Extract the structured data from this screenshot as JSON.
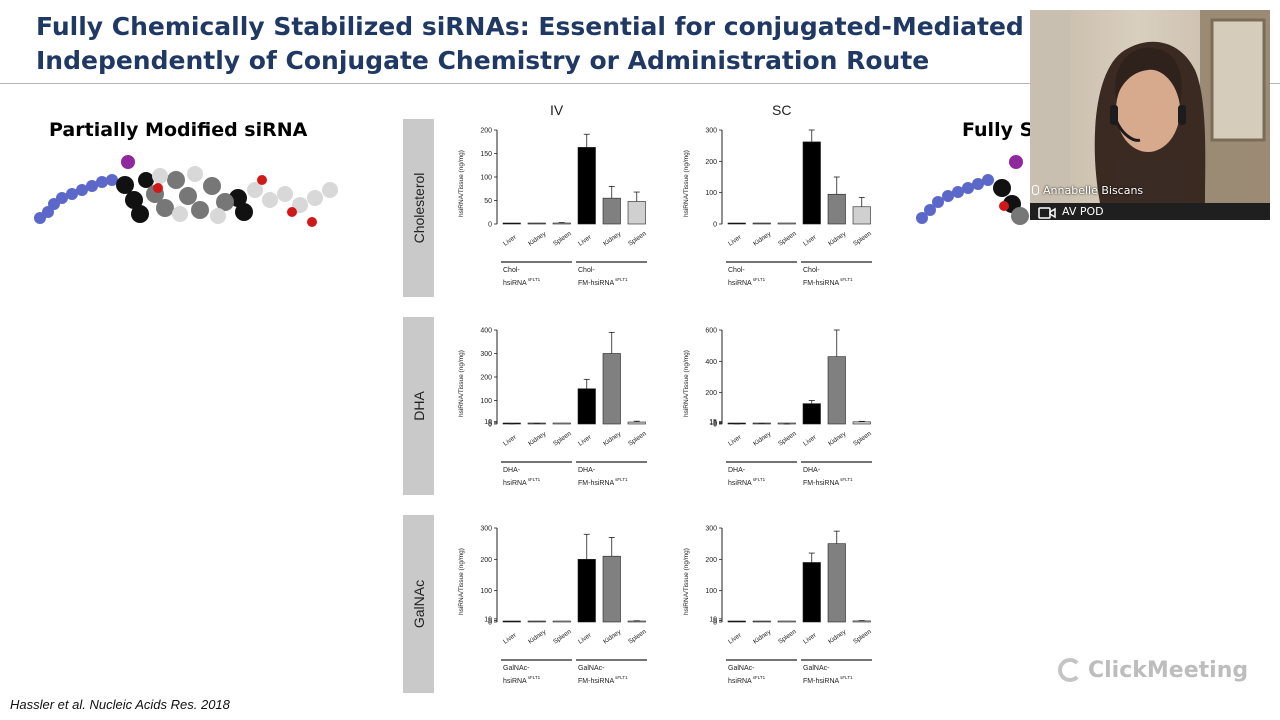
{
  "slide": {
    "title_line1": "Fully Chemically Stabilized siRNAs: Essential for conjugated-Mediated Deliv",
    "title_line2": "Independently of Conjugate Chemistry or Administration Route",
    "left_label": "Partially Modified siRNA",
    "right_label": "Fully St",
    "col_iv": "IV",
    "col_sc": "SC",
    "row_labels": [
      "Cholesterol",
      "DHA",
      "GalNAc"
    ],
    "citation": "Hassler et al. Nucleic Acids Res. 2018",
    "watermark": "ClickMeeting"
  },
  "video": {
    "participant_name": "Annabelle Biscans",
    "camera_label": "AV POD"
  },
  "colors": {
    "title": "#1f3864",
    "bar_liver": "#000000",
    "bar_kidney": "#808080",
    "bar_spleen": "#d0d0d0"
  },
  "chart_data": [
    {
      "type": "bar",
      "row": "Cholesterol",
      "route": "IV",
      "ylabel": "hsiRNA/Tissue (ng/mg)",
      "yticks": [
        "0",
        "50",
        "100",
        "150",
        "200"
      ],
      "categories": [
        "Liver",
        "Kidney",
        "Spleen",
        "Liver",
        "Kidney",
        "Spleen"
      ],
      "groups": [
        [
          "Chol-",
          "hsiRNA",
          "sFLT1"
        ],
        [
          "Chol-",
          "FM-hsiRNA",
          "sFLT1"
        ]
      ],
      "values": [
        1,
        1,
        2,
        163,
        55,
        48
      ],
      "errors": [
        0,
        0,
        1,
        28,
        25,
        20
      ],
      "ylim": [
        0,
        200
      ]
    },
    {
      "type": "bar",
      "row": "Cholesterol",
      "route": "SC",
      "ylabel": "hsiRNA/Tissue (ng/mg)",
      "yticks": [
        "0",
        "100",
        "200",
        "300"
      ],
      "categories": [
        "Liver",
        "Kidney",
        "Spleen",
        "Liver",
        "Kidney",
        "Spleen"
      ],
      "groups": [
        [
          "Chol-",
          "hsiRNA",
          "sFLT1"
        ],
        [
          "Chol-",
          "FM-hsiRNA",
          "sFLT1"
        ]
      ],
      "values": [
        1,
        1,
        1,
        262,
        95,
        55
      ],
      "errors": [
        0,
        0,
        0,
        55,
        55,
        30
      ],
      "ylim": [
        0,
        300
      ]
    },
    {
      "type": "bar",
      "row": "DHA",
      "route": "IV",
      "ylabel": "hsiRNA/Tissue (ng/mg)",
      "yticks": [
        "0",
        "5",
        "10",
        "100",
        "200",
        "300",
        "400"
      ],
      "categories": [
        "Liver",
        "Kidney",
        "Spleen",
        "Liver",
        "Kidney",
        "Spleen"
      ],
      "groups": [
        [
          "DHA-",
          "hsiRNA",
          "sFLT1"
        ],
        [
          "DHA-",
          "FM-hsiRNA",
          "sFLT1"
        ]
      ],
      "values": [
        0.3,
        1.5,
        0,
        150,
        300,
        8.5
      ],
      "errors": [
        0.2,
        0.6,
        0,
        40,
        90,
        3.5
      ],
      "ylim": [
        0,
        400
      ]
    },
    {
      "type": "bar",
      "row": "DHA",
      "route": "SC",
      "ylabel": "hsiRNA/Tissue (ng/mg)",
      "yticks": [
        "0",
        "5",
        "10",
        "15",
        "200",
        "400",
        "600"
      ],
      "categories": [
        "Liver",
        "Kidney",
        "Spleen",
        "Liver",
        "Kidney",
        "Spleen"
      ],
      "groups": [
        [
          "DHA-",
          "hsiRNA",
          "sFLT1"
        ],
        [
          "DHA-",
          "FM-hsiRNA",
          "sFLT1"
        ]
      ],
      "values": [
        0.3,
        1.8,
        0.2,
        130,
        430,
        14
      ],
      "errors": [
        0.2,
        0.6,
        0.1,
        20,
        170,
        3
      ],
      "ylim": [
        0,
        600
      ]
    },
    {
      "type": "bar",
      "row": "GalNAc",
      "route": "IV",
      "ylabel": "hsiRNA/Tissue (ng/mg)",
      "yticks": [
        "0",
        "5",
        "10",
        "100",
        "200",
        "300"
      ],
      "categories": [
        "Liver",
        "Kidney",
        "Spleen",
        "Liver",
        "Kidney",
        "Spleen"
      ],
      "groups": [
        [
          "GalNAc-",
          "hsiRNA",
          "sFLT1"
        ],
        [
          "GalNAc-",
          "FM-hsiRNA",
          "sFLT1"
        ]
      ],
      "values": [
        0.2,
        0.2,
        0.2,
        200,
        210,
        3
      ],
      "errors": [
        0,
        0,
        0,
        80,
        60,
        1
      ],
      "ylim": [
        0,
        300
      ]
    },
    {
      "type": "bar",
      "row": "GalNAc",
      "route": "SC",
      "ylabel": "hsiRNA/Tissue (ng/mg)",
      "yticks": [
        "0",
        "5",
        "10",
        "100",
        "200",
        "300"
      ],
      "categories": [
        "Liver",
        "Kidney",
        "Spleen",
        "Liver",
        "Kidney",
        "Spleen"
      ],
      "groups": [
        [
          "GalNAc-",
          "hsiRNA",
          "sFLT1"
        ],
        [
          "GalNAc-",
          "FM-hsiRNA",
          "sFLT1"
        ]
      ],
      "values": [
        0.1,
        0.1,
        0.1,
        190,
        250,
        3.5
      ],
      "errors": [
        0,
        0,
        0,
        30,
        40,
        1
      ],
      "ylim": [
        0,
        300
      ]
    }
  ]
}
